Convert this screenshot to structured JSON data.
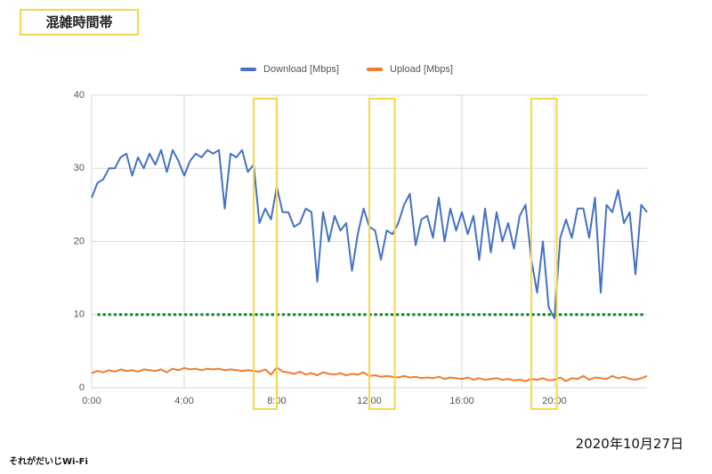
{
  "header": {
    "title": "混雑時間帯"
  },
  "footer": {
    "date": "2020年10月27日",
    "logo": "それがだいじWi-Fi"
  },
  "chart_data": {
    "type": "line",
    "x": [
      0,
      0.25,
      0.5,
      0.75,
      1,
      1.25,
      1.5,
      1.75,
      2,
      2.25,
      2.5,
      2.75,
      3,
      3.25,
      3.5,
      3.75,
      4,
      4.25,
      4.5,
      4.75,
      5,
      5.25,
      5.5,
      5.75,
      6,
      6.25,
      6.5,
      6.75,
      7,
      7.25,
      7.5,
      7.75,
      8,
      8.25,
      8.5,
      8.75,
      9,
      9.25,
      9.5,
      9.75,
      10,
      10.25,
      10.5,
      10.75,
      11,
      11.25,
      11.5,
      11.75,
      12,
      12.25,
      12.5,
      12.75,
      13,
      13.25,
      13.5,
      13.75,
      14,
      14.25,
      14.5,
      14.75,
      15,
      15.25,
      15.5,
      15.75,
      16,
      16.25,
      16.5,
      16.75,
      17,
      17.25,
      17.5,
      17.75,
      18,
      18.25,
      18.5,
      18.75,
      19,
      19.25,
      19.5,
      19.75,
      20,
      20.25,
      20.5,
      20.75,
      21,
      21.25,
      21.5,
      21.75,
      22,
      22.25,
      22.5,
      22.75,
      23,
      23.25,
      23.5,
      23.75,
      24
    ],
    "series": [
      {
        "name": "Download [Mbps]",
        "color": "#4472c4",
        "values": [
          26,
          28,
          28.5,
          30,
          30,
          31.5,
          32,
          29,
          31.5,
          30,
          32,
          30.5,
          32.5,
          29.5,
          32.5,
          31,
          29,
          31,
          32,
          31.5,
          32.5,
          32,
          32.5,
          24.5,
          32,
          31.5,
          32.5,
          29.5,
          30.5,
          22.5,
          24.5,
          23,
          27.5,
          24,
          24,
          22,
          22.5,
          24.5,
          24,
          14.5,
          24,
          20,
          23.5,
          21.5,
          22.5,
          16,
          21,
          24.5,
          22,
          21.5,
          17.5,
          21.5,
          21,
          22.5,
          25,
          26.5,
          19.5,
          23,
          23.5,
          20.5,
          26,
          20,
          24.5,
          21.5,
          24,
          21,
          23.5,
          17.5,
          24.5,
          18.5,
          24,
          20,
          22.5,
          19,
          23.5,
          25,
          17.5,
          13,
          20,
          11,
          9.5,
          20.5,
          23,
          20.5,
          24.5,
          24.5,
          20.5,
          26,
          13,
          25,
          24,
          27,
          22.5,
          24,
          15.5,
          25,
          24
        ]
      },
      {
        "name": "Upload [Mbps]",
        "color": "#ed7d31",
        "values": [
          2,
          2.3,
          2.1,
          2.4,
          2.2,
          2.5,
          2.3,
          2.4,
          2.2,
          2.5,
          2.4,
          2.3,
          2.5,
          2.1,
          2.6,
          2.4,
          2.7,
          2.5,
          2.6,
          2.4,
          2.6,
          2.5,
          2.6,
          2.4,
          2.5,
          2.4,
          2.3,
          2.4,
          2.3,
          2.2,
          2.5,
          1.8,
          2.8,
          2.2,
          2.1,
          1.9,
          2.2,
          1.8,
          2,
          1.7,
          2.1,
          1.9,
          1.8,
          2,
          1.7,
          1.9,
          1.8,
          2.1,
          1.6,
          1.7,
          1.5,
          1.6,
          1.5,
          1.4,
          1.6,
          1.4,
          1.5,
          1.3,
          1.4,
          1.3,
          1.5,
          1.2,
          1.4,
          1.3,
          1.2,
          1.4,
          1.1,
          1.3,
          1.1,
          1.2,
          1.3,
          1.1,
          1.2,
          1,
          1.1,
          0.9,
          1.2,
          1.1,
          1.3,
          1,
          1.1,
          1.4,
          0.9,
          1.3,
          1.2,
          1.6,
          1.1,
          1.4,
          1.3,
          1.2,
          1.6,
          1.3,
          1.5,
          1.2,
          1.1,
          1.3,
          1.6
        ]
      }
    ],
    "xlim": [
      0,
      24
    ],
    "xticks": [
      {
        "value": 0,
        "label": "0:00"
      },
      {
        "value": 4,
        "label": "4:00"
      },
      {
        "value": 8,
        "label": "8:00"
      },
      {
        "value": 12,
        "label": "12:00"
      },
      {
        "value": 16,
        "label": "16:00"
      },
      {
        "value": 20,
        "label": "20:00"
      }
    ],
    "ylim": [
      0,
      40
    ],
    "yticks": [
      0,
      10,
      20,
      30,
      40
    ],
    "grid": true,
    "legend": "top",
    "hlines": [
      {
        "value": 10,
        "color": "#1e8a2e"
      }
    ],
    "highlights": [
      [
        7,
        8
      ],
      [
        12,
        13.1
      ],
      [
        19,
        20.1
      ]
    ],
    "highlight_color": "#f5d84a"
  }
}
